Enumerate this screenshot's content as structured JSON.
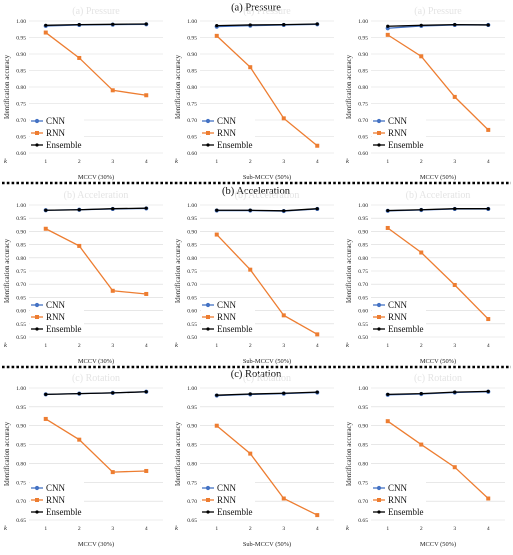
{
  "sections": [
    {
      "title": "(a) Pressure"
    },
    {
      "title": "(b) Acceleration"
    },
    {
      "title": "(c) Rotation"
    }
  ],
  "legend_labels": [
    "CNN",
    "RNN",
    "Ensemble"
  ],
  "ylabel": "Identification accuracy",
  "k_label": "k",
  "colors": {
    "CNN": "#4472C4",
    "RNN": "#ED7D31",
    "Ensemble": "#000000",
    "grid": "#d9d9d9",
    "separator": "#000000"
  },
  "chart_data": [
    {
      "type": "line",
      "section": "(a) Pressure",
      "xlabel": "MCCV (30%)",
      "x": [
        1,
        2,
        3,
        4
      ],
      "ylim": [
        0.6,
        1.0
      ],
      "yticks": [
        "0.60",
        "0.65",
        "0.70",
        "0.75",
        "0.80",
        "0.85",
        "0.90",
        "0.95",
        "1.00"
      ],
      "grid": true,
      "legend": "bottom-left",
      "series": [
        {
          "name": "CNN",
          "values": [
            0.985,
            0.988,
            0.989,
            0.99
          ]
        },
        {
          "name": "RNN",
          "values": [
            0.965,
            0.888,
            0.79,
            0.775
          ]
        },
        {
          "name": "Ensemble",
          "values": [
            0.987,
            0.989,
            0.99,
            0.991
          ]
        }
      ]
    },
    {
      "type": "line",
      "section": "(a) Pressure",
      "xlabel": "Sub-MCCV (50%)",
      "x": [
        1,
        2,
        3,
        4
      ],
      "ylim": [
        0.6,
        1.0
      ],
      "yticks": [
        "0.60",
        "0.65",
        "0.70",
        "0.75",
        "0.80",
        "0.85",
        "0.90",
        "0.95",
        "1.00"
      ],
      "grid": true,
      "legend": "bottom-left",
      "series": [
        {
          "name": "CNN",
          "values": [
            0.983,
            0.986,
            0.988,
            0.99
          ]
        },
        {
          "name": "RNN",
          "values": [
            0.955,
            0.86,
            0.705,
            0.622
          ]
        },
        {
          "name": "Ensemble",
          "values": [
            0.986,
            0.988,
            0.989,
            0.991
          ]
        }
      ]
    },
    {
      "type": "line",
      "section": "(a) Pressure",
      "xlabel": "MCCV (50%)",
      "x": [
        1,
        2,
        3,
        4
      ],
      "ylim": [
        0.6,
        1.0
      ],
      "yticks": [
        "0.60",
        "0.65",
        "0.70",
        "0.75",
        "0.80",
        "0.85",
        "0.90",
        "0.95",
        "1.00"
      ],
      "grid": true,
      "legend": "bottom-left",
      "series": [
        {
          "name": "CNN",
          "values": [
            0.978,
            0.985,
            0.988,
            0.988
          ]
        },
        {
          "name": "RNN",
          "values": [
            0.958,
            0.893,
            0.77,
            0.67
          ]
        },
        {
          "name": "Ensemble",
          "values": [
            0.984,
            0.987,
            0.989,
            0.988
          ]
        }
      ]
    },
    {
      "type": "line",
      "section": "(b) Acceleration",
      "xlabel": "MCCV (30%)",
      "x": [
        1,
        2,
        3,
        4
      ],
      "ylim": [
        0.5,
        1.0
      ],
      "yticks": [
        "0.50",
        "0.55",
        "0.60",
        "0.65",
        "0.70",
        "0.75",
        "0.80",
        "0.85",
        "0.90",
        "0.95",
        "1.00"
      ],
      "grid": true,
      "legend": "bottom-left",
      "series": [
        {
          "name": "CNN",
          "values": [
            0.98,
            0.982,
            0.985,
            0.987
          ]
        },
        {
          "name": "RNN",
          "values": [
            0.91,
            0.845,
            0.675,
            0.663
          ]
        },
        {
          "name": "Ensemble",
          "values": [
            0.98,
            0.982,
            0.986,
            0.988
          ]
        }
      ]
    },
    {
      "type": "line",
      "section": "(b) Acceleration",
      "xlabel": "Sub-MCCV (50%)",
      "x": [
        1,
        2,
        3,
        4
      ],
      "ylim": [
        0.5,
        1.0
      ],
      "yticks": [
        "0.50",
        "0.55",
        "0.60",
        "0.65",
        "0.70",
        "0.75",
        "0.80",
        "0.85",
        "0.90",
        "0.95",
        "1.00"
      ],
      "grid": true,
      "legend": "bottom-left",
      "series": [
        {
          "name": "CNN",
          "values": [
            0.979,
            0.979,
            0.977,
            0.985
          ]
        },
        {
          "name": "RNN",
          "values": [
            0.888,
            0.755,
            0.582,
            0.51
          ]
        },
        {
          "name": "Ensemble",
          "values": [
            0.98,
            0.98,
            0.978,
            0.986
          ]
        }
      ]
    },
    {
      "type": "line",
      "section": "(b) Acceleration",
      "xlabel": "MCCV (50%)",
      "x": [
        1,
        2,
        3,
        4
      ],
      "ylim": [
        0.5,
        1.0
      ],
      "yticks": [
        "0.50",
        "0.55",
        "0.60",
        "0.65",
        "0.70",
        "0.75",
        "0.80",
        "0.85",
        "0.90",
        "0.95",
        "1.00"
      ],
      "grid": true,
      "legend": "bottom-left",
      "series": [
        {
          "name": "CNN",
          "values": [
            0.978,
            0.981,
            0.985,
            0.985
          ]
        },
        {
          "name": "RNN",
          "values": [
            0.913,
            0.82,
            0.697,
            0.568
          ]
        },
        {
          "name": "Ensemble",
          "values": [
            0.979,
            0.982,
            0.986,
            0.986
          ]
        }
      ]
    },
    {
      "type": "line",
      "section": "(c) Rotation",
      "xlabel": "MCCV (30%)",
      "x": [
        1,
        2,
        3,
        4
      ],
      "ylim": [
        0.65,
        1.0
      ],
      "yticks": [
        "0.65",
        "0.70",
        "0.75",
        "0.80",
        "0.85",
        "0.90",
        "0.95",
        "1.00"
      ],
      "grid": true,
      "legend": "bottom-left",
      "series": [
        {
          "name": "CNN",
          "values": [
            0.983,
            0.985,
            0.987,
            0.99
          ]
        },
        {
          "name": "RNN",
          "values": [
            0.918,
            0.863,
            0.777,
            0.78
          ]
        },
        {
          "name": "Ensemble",
          "values": [
            0.983,
            0.985,
            0.987,
            0.99
          ]
        }
      ]
    },
    {
      "type": "line",
      "section": "(c) Rotation",
      "xlabel": "Sub-MCCV (50%)",
      "x": [
        1,
        2,
        3,
        4
      ],
      "ylim": [
        0.65,
        1.0
      ],
      "yticks": [
        "0.65",
        "0.70",
        "0.75",
        "0.80",
        "0.85",
        "0.90",
        "0.95",
        "1.00"
      ],
      "grid": true,
      "legend": "bottom-left",
      "series": [
        {
          "name": "CNN",
          "values": [
            0.98,
            0.983,
            0.985,
            0.988
          ]
        },
        {
          "name": "RNN",
          "values": [
            0.9,
            0.826,
            0.707,
            0.663
          ]
        },
        {
          "name": "Ensemble",
          "values": [
            0.981,
            0.984,
            0.986,
            0.989
          ]
        }
      ]
    },
    {
      "type": "line",
      "section": "(c) Rotation",
      "xlabel": "MCCV (50%)",
      "x": [
        1,
        2,
        3,
        4
      ],
      "ylim": [
        0.65,
        1.0
      ],
      "yticks": [
        "0.65",
        "0.70",
        "0.75",
        "0.80",
        "0.85",
        "0.90",
        "0.95",
        "1.00"
      ],
      "grid": true,
      "legend": "bottom-left",
      "series": [
        {
          "name": "CNN",
          "values": [
            0.982,
            0.984,
            0.988,
            0.99
          ]
        },
        {
          "name": "RNN",
          "values": [
            0.912,
            0.85,
            0.79,
            0.707
          ]
        },
        {
          "name": "Ensemble",
          "values": [
            0.983,
            0.985,
            0.989,
            0.991
          ]
        }
      ]
    }
  ]
}
